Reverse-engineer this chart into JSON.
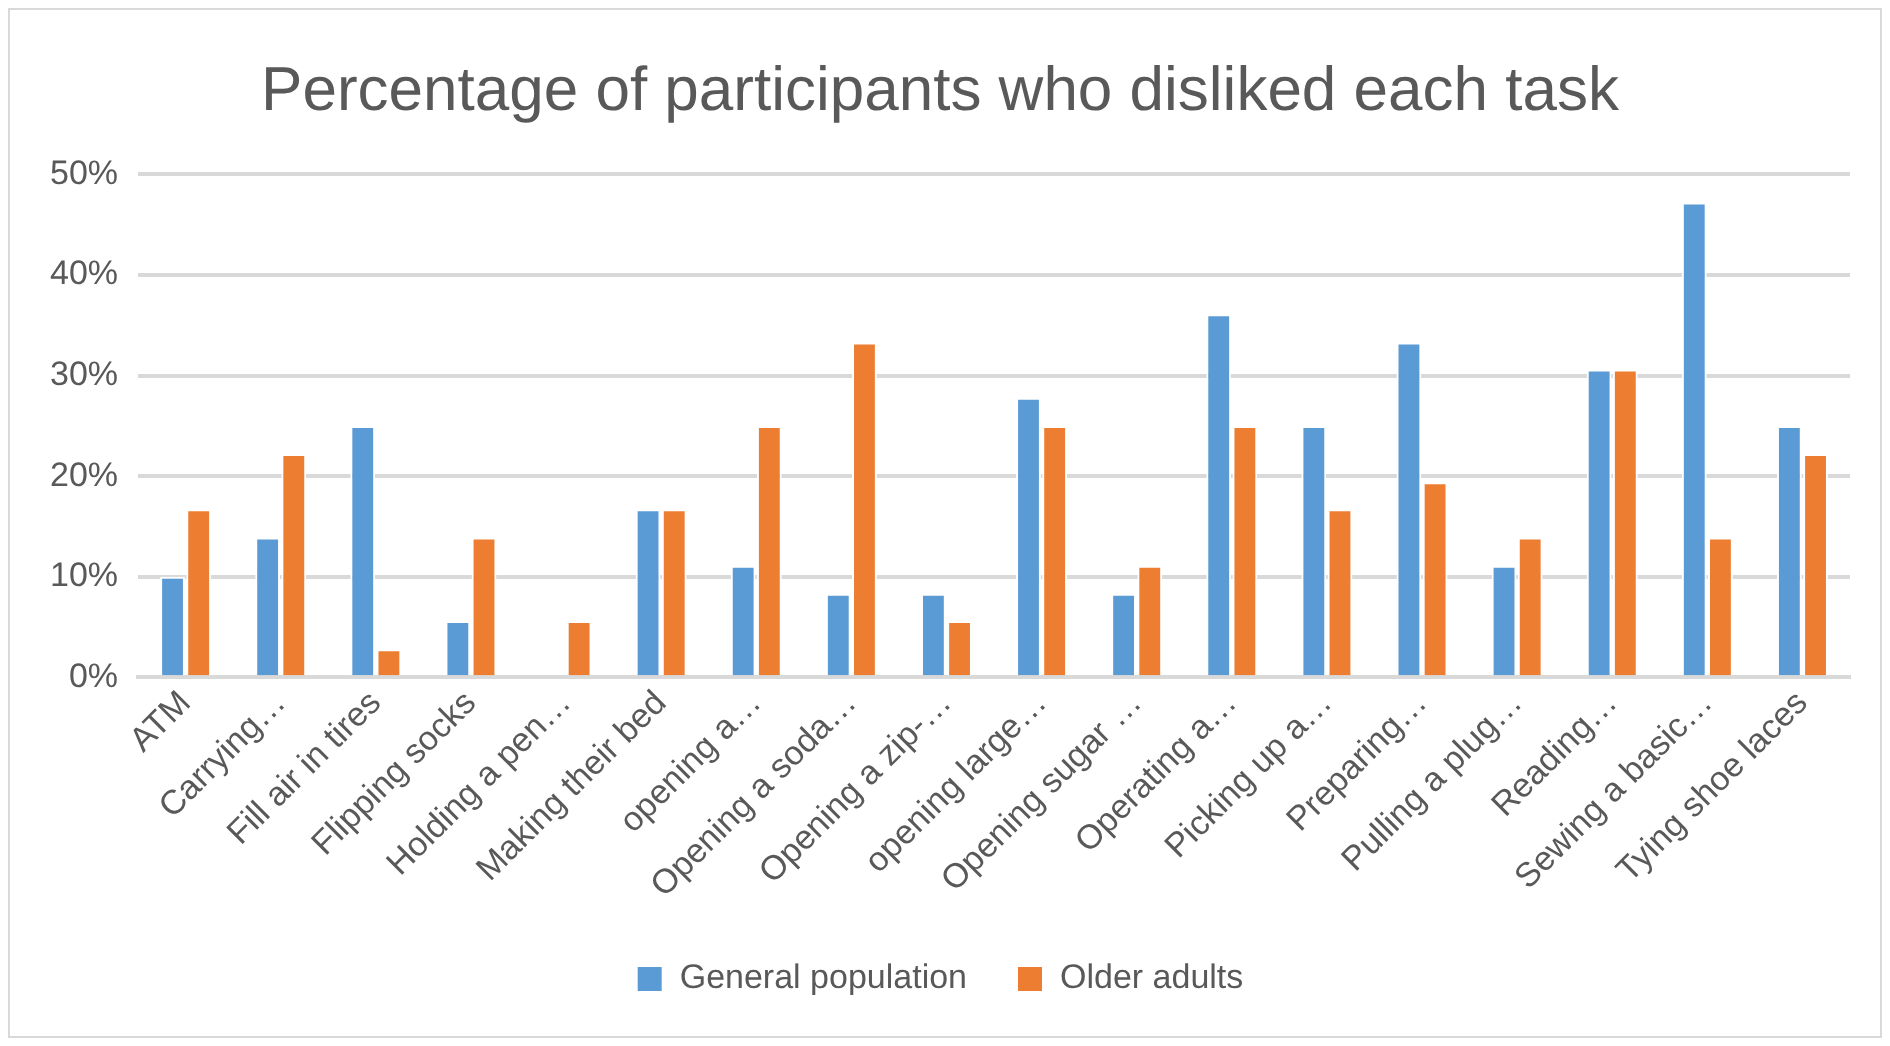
{
  "chart_data": {
    "type": "bar",
    "title": "Percentage of participants who disliked each task",
    "categories": [
      "ATM",
      "Carrying…",
      "Fill air in tires",
      "Flipping socks",
      "Holding a pen…",
      "Making their bed",
      "opening a…",
      "Opening a soda…",
      "Opening a zip-…",
      "opening large…",
      "Opening sugar …",
      "Operating a…",
      "Picking up a…",
      "Preparing…",
      "Pulling a plug…",
      "Reading…",
      "Sewing a basic…",
      "Tying shoe laces"
    ],
    "series": [
      {
        "name": "General population",
        "color": "#5b9bd5",
        "values": [
          10,
          13.9,
          25,
          5.6,
          0,
          16.7,
          11.1,
          8.3,
          8.3,
          27.8,
          8.3,
          36.1,
          25,
          33.3,
          11.1,
          30.6,
          47.2,
          25
        ]
      },
      {
        "name": "Older adults",
        "color": "#ed7d31",
        "values": [
          16.7,
          22.2,
          2.8,
          13.9,
          5.6,
          16.7,
          25,
          33.3,
          5.6,
          25,
          11.1,
          25,
          16.7,
          19.4,
          13.9,
          30.6,
          13.9,
          22.2
        ]
      }
    ],
    "ylim": [
      0,
      50
    ],
    "yticks": [
      {
        "value": 0,
        "label": "0%"
      },
      {
        "value": 10,
        "label": "10%"
      },
      {
        "value": 20,
        "label": "20%"
      },
      {
        "value": 30,
        "label": "30%"
      },
      {
        "value": 40,
        "label": "40%"
      },
      {
        "value": 50,
        "label": "50%"
      }
    ],
    "grid": "y",
    "legend": "bottom"
  }
}
